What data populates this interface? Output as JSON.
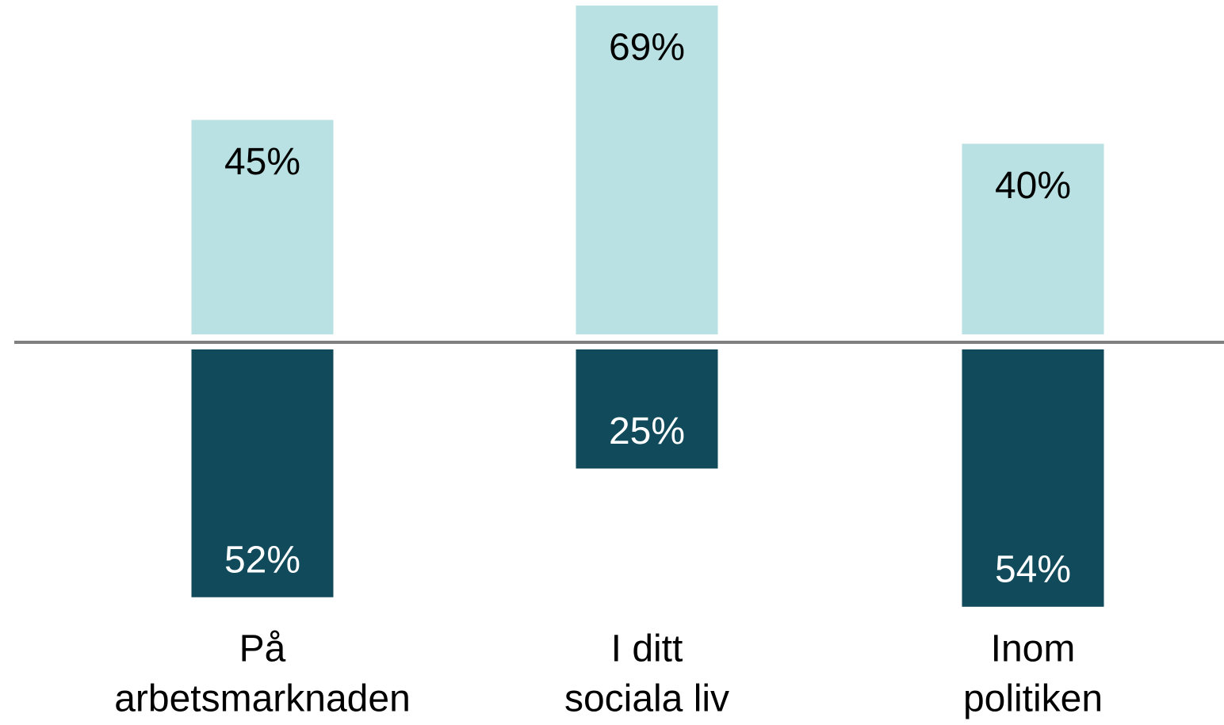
{
  "chart_data": {
    "type": "bar",
    "categories": [
      [
        "På",
        "arbetsmarknaden"
      ],
      [
        "I ditt",
        "sociala liv"
      ],
      [
        "Inom",
        "politiken"
      ]
    ],
    "series": [
      {
        "color": "#b9e1e3",
        "values": [
          45,
          69,
          40
        ],
        "value_labels": [
          "45%",
          "69%",
          "40%"
        ]
      },
      {
        "color": "#114b5b",
        "values": [
          52,
          25,
          54
        ],
        "value_labels": [
          "52%",
          "25%",
          "54%"
        ]
      }
    ],
    "ylim": [
      0,
      70
    ]
  }
}
